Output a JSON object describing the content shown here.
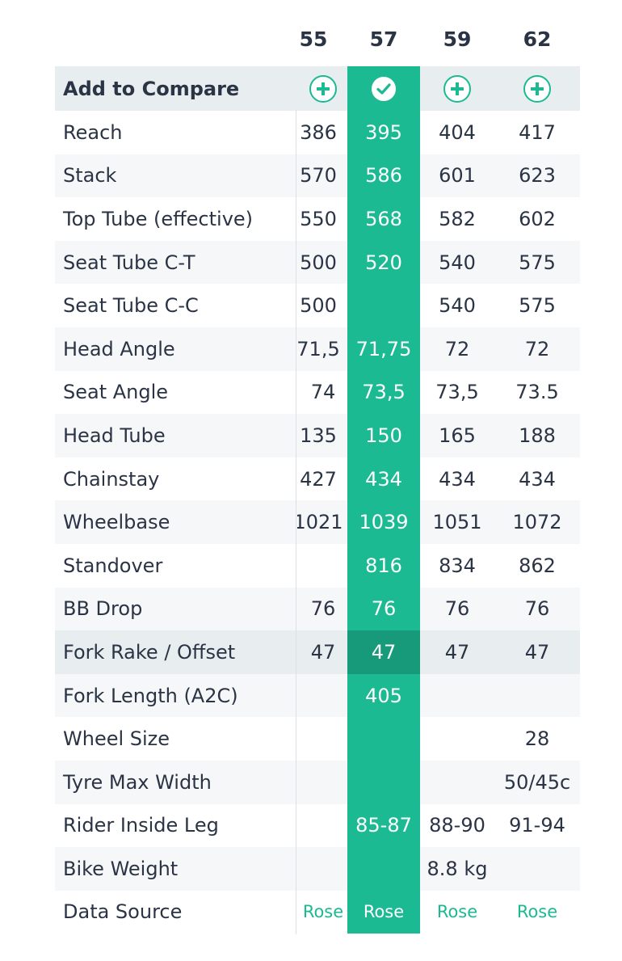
{
  "sizes": [
    "55",
    "57",
    "59",
    "62"
  ],
  "compare": {
    "label": "Add to Compare",
    "states": [
      "plus",
      "checked",
      "plus",
      "plus"
    ]
  },
  "rows": [
    {
      "label": "Reach",
      "values": [
        "386",
        "395",
        "404",
        "417"
      ]
    },
    {
      "label": "Stack",
      "values": [
        "570",
        "586",
        "601",
        "623"
      ]
    },
    {
      "label": "Top Tube (effective)",
      "values": [
        "550",
        "568",
        "582",
        "602"
      ]
    },
    {
      "label": "Seat Tube C-T",
      "values": [
        "500",
        "520",
        "540",
        "575"
      ]
    },
    {
      "label": "Seat Tube C-C",
      "values": [
        "500",
        "",
        "540",
        "575"
      ]
    },
    {
      "label": "Head Angle",
      "values": [
        "71,5",
        "71,75",
        "72",
        "72"
      ]
    },
    {
      "label": "Seat Angle",
      "values": [
        "74",
        "73,5",
        "73,5",
        "73.5"
      ]
    },
    {
      "label": "Head Tube",
      "values": [
        "135",
        "150",
        "165",
        "188"
      ]
    },
    {
      "label": "Chainstay",
      "values": [
        "427",
        "434",
        "434",
        "434"
      ]
    },
    {
      "label": "Wheelbase",
      "values": [
        "1021",
        "1039",
        "1051",
        "1072"
      ]
    },
    {
      "label": "Standover",
      "values": [
        "",
        "816",
        "834",
        "862"
      ]
    },
    {
      "label": "BB Drop",
      "values": [
        "76",
        "76",
        "76",
        "76"
      ]
    },
    {
      "label": "Fork Rake / Offset",
      "values": [
        "47",
        "47",
        "47",
        "47"
      ]
    },
    {
      "label": "Fork Length (A2C)",
      "values": [
        "",
        "405",
        "",
        ""
      ]
    },
    {
      "label": "Wheel Size",
      "values": [
        "",
        "",
        "",
        "28"
      ]
    },
    {
      "label": "Tyre Max Width",
      "values": [
        "",
        "",
        "",
        "50/45c"
      ]
    },
    {
      "label": "Rider Inside Leg",
      "values": [
        "",
        "85-87",
        "88-90",
        "91-94"
      ]
    },
    {
      "label": "Bike Weight",
      "values": [
        "",
        "",
        "8.8 kg",
        ""
      ]
    },
    {
      "label": "Data Source",
      "values": [
        "Rose",
        "Rose",
        "Rose",
        "Rose"
      ]
    }
  ],
  "colors": {
    "accent": "#1cba93",
    "accent_dark": "#179a7a",
    "text": "#2b3445",
    "stripe": "#f6f7f9",
    "header_bg": "#e8eef0"
  },
  "highlight_row": "Fork Rake / Offset",
  "icons": {
    "plus": "plus-circle-icon",
    "checked": "check-circle-icon"
  }
}
